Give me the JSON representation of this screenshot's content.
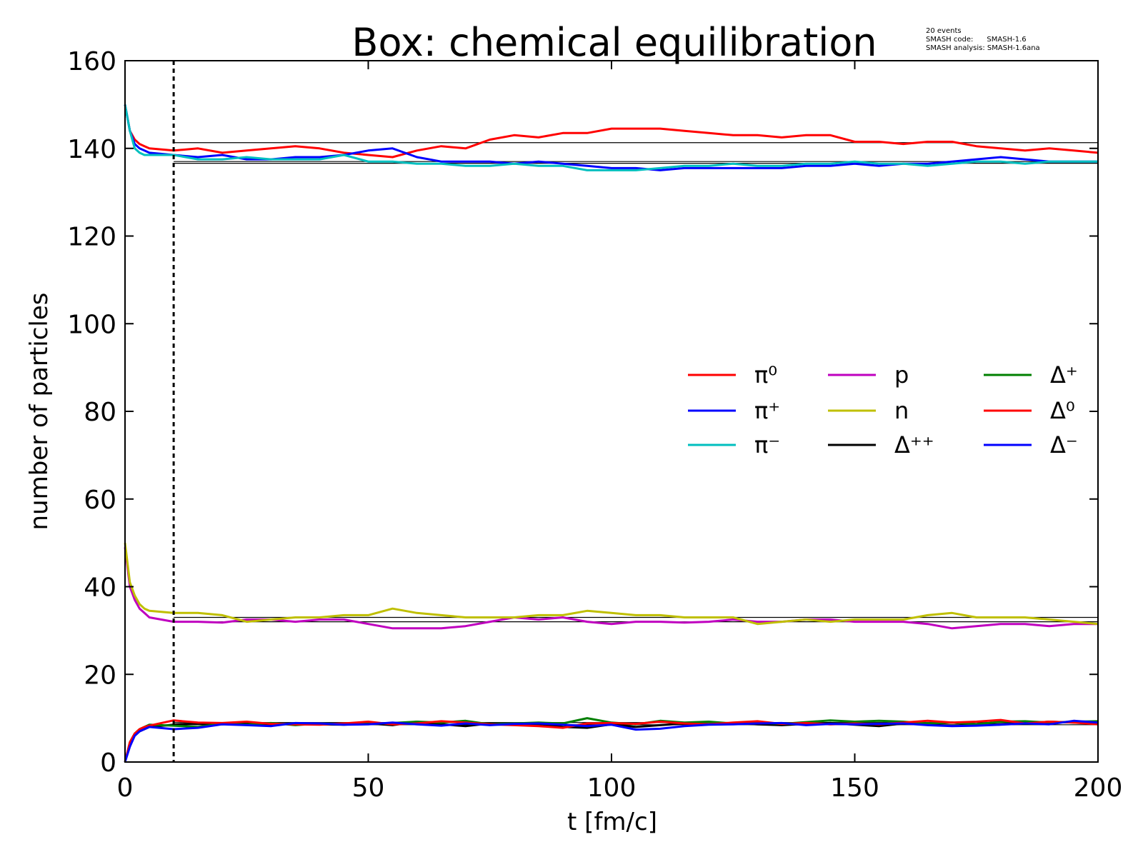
{
  "chart_data": {
    "type": "line",
    "title": "Box: chemical equilibration",
    "xlabel": "t [fm/c]",
    "ylabel": "number of particles",
    "xlim": [
      0,
      200
    ],
    "ylim": [
      0,
      160
    ],
    "xticks": [
      0,
      50,
      100,
      150,
      200
    ],
    "yticks": [
      0,
      20,
      40,
      60,
      80,
      100,
      120,
      140,
      160
    ],
    "grid": false,
    "legend_placement": "center-right",
    "annotation": [
      "20 events",
      "SMASH code:      SMASH-1.6",
      "SMASH analysis: SMASH-1.6ana"
    ],
    "vertical_marker_t": 10,
    "equilibrium_lines": {
      "t_start": 10,
      "t_end": 200,
      "values": [
        141.3,
        137.0,
        136.6,
        33.0,
        32.0,
        9.0,
        8.5
      ]
    },
    "x": [
      0,
      1,
      2,
      3,
      4,
      5,
      10,
      15,
      20,
      25,
      30,
      35,
      40,
      45,
      50,
      55,
      60,
      65,
      70,
      75,
      80,
      85,
      90,
      95,
      100,
      105,
      110,
      115,
      120,
      125,
      130,
      135,
      140,
      145,
      150,
      155,
      160,
      165,
      170,
      175,
      180,
      185,
      190,
      195,
      200
    ],
    "series": [
      {
        "name": "π⁰",
        "color": "#ff0000",
        "values": [
          150,
          144,
          142,
          141,
          140.5,
          140,
          139.5,
          140,
          139,
          139.5,
          140,
          140.5,
          140,
          139,
          138.5,
          138,
          139.5,
          140.5,
          140,
          142,
          143,
          142.5,
          143.5,
          143.5,
          144.5,
          144.5,
          144.5,
          144,
          143.5,
          143,
          143,
          142.5,
          143,
          143,
          141.5,
          141.5,
          141,
          141.5,
          141.5,
          140.5,
          140,
          139.5,
          140,
          139.5,
          139
        ]
      },
      {
        "name": "π⁺",
        "color": "#0000ff",
        "values": [
          150,
          144,
          141,
          140,
          139.5,
          139,
          138.5,
          138,
          138.5,
          137.5,
          137.5,
          138,
          138,
          138.5,
          139.5,
          140,
          138,
          137,
          137,
          137,
          136.5,
          137,
          136.5,
          136,
          135.5,
          135.5,
          135,
          135.5,
          135.5,
          135.5,
          135.5,
          135.5,
          136,
          136,
          136.5,
          136,
          136.5,
          136.5,
          137,
          137.5,
          138,
          137.5,
          137,
          137,
          137
        ]
      },
      {
        "name": "π⁻",
        "color": "#00bfbf",
        "values": [
          150,
          144,
          140,
          139,
          138.5,
          138.5,
          138.5,
          137.5,
          137.5,
          138,
          137.5,
          137.5,
          137.5,
          138.5,
          137,
          137,
          136.5,
          136.5,
          136,
          136,
          136.5,
          136,
          136,
          135,
          135,
          135,
          135.5,
          136,
          136,
          136.5,
          136,
          136,
          136.5,
          136.5,
          137,
          136.5,
          136.5,
          136,
          136.5,
          137,
          137,
          136.5,
          137,
          137,
          137
        ]
      },
      {
        "name": "p",
        "color": "#bf00bf",
        "values": [
          49,
          40,
          37,
          35,
          34,
          33,
          32,
          32,
          31.8,
          32.5,
          32.5,
          32,
          32.5,
          32.5,
          31.5,
          30.5,
          30.5,
          30.5,
          31,
          32,
          33,
          32.5,
          33,
          32,
          31.5,
          32,
          32,
          31.8,
          32,
          32.5,
          32,
          32,
          32.5,
          32.5,
          32,
          32,
          32,
          31.5,
          30.5,
          31,
          31.5,
          31.5,
          31,
          31.5,
          31.5
        ]
      },
      {
        "name": "n",
        "color": "#bfbf00",
        "values": [
          50,
          41,
          38,
          36,
          35,
          34.5,
          34,
          34,
          33.5,
          32,
          32.5,
          33,
          33,
          33.5,
          33.5,
          35,
          34,
          33.5,
          33,
          33,
          33,
          33.5,
          33.5,
          34.5,
          34,
          33.5,
          33.5,
          33,
          33,
          33,
          31.5,
          32,
          32.5,
          32,
          32.5,
          32.5,
          32.5,
          33.5,
          34,
          33,
          33,
          33,
          32.5,
          32,
          31.5
        ]
      },
      {
        "name": "Δ⁺⁺",
        "color": "#000000",
        "values": [
          0,
          4,
          6,
          7,
          7.5,
          8,
          8.5,
          8.8,
          8.6,
          9,
          8.4,
          8.8,
          8.6,
          8.5,
          8.8,
          8.4,
          9.2,
          8.6,
          8.2,
          8.8,
          8.5,
          8.7,
          8,
          7.8,
          8.6,
          8,
          8.4,
          8.8,
          8.6,
          8.9,
          8.6,
          8.4,
          8.7,
          8.9,
          8.5,
          8.2,
          8.8,
          8.6,
          9,
          8.5,
          8.6,
          8.8,
          9.2,
          9,
          9
        ]
      },
      {
        "name": "Δ⁺",
        "color": "#007f00",
        "values": [
          0,
          4.5,
          6.5,
          7.5,
          8,
          8.5,
          8.3,
          8,
          8.8,
          8.5,
          8.9,
          8.4,
          8.8,
          8.6,
          8.7,
          8.9,
          9.2,
          9,
          9.4,
          8.6,
          8.8,
          9,
          8.8,
          10,
          9,
          8.6,
          9.4,
          9,
          9.2,
          8.8,
          9,
          8.7,
          9.1,
          9.5,
          9.2,
          9.4,
          9.2,
          8.8,
          9,
          8.6,
          9.2,
          9.3,
          9,
          9.2,
          9.3
        ]
      },
      {
        "name": "Δ⁰",
        "color": "#ff0000",
        "values": [
          0,
          4.5,
          6.5,
          7.5,
          8,
          8.3,
          9.5,
          9,
          8.9,
          9.2,
          8.7,
          8.6,
          8.5,
          8.8,
          9.2,
          8.6,
          8.8,
          9.3,
          9,
          8.6,
          8.4,
          8.2,
          7.8,
          8.8,
          8.9,
          8.7,
          9.2,
          8.8,
          8.6,
          9,
          9.3,
          8.7,
          8.9,
          8.6,
          8.8,
          8.6,
          9,
          9.4,
          9,
          9.2,
          9.6,
          8.8,
          9.2,
          9,
          8.6
        ]
      },
      {
        "name": "Δ⁻",
        "color": "#0000ff",
        "values": [
          0,
          3.5,
          6,
          7,
          7.5,
          8,
          7.5,
          7.8,
          8.6,
          8.4,
          8.2,
          8.9,
          8.8,
          8.5,
          8.6,
          9,
          8.6,
          8.3,
          8.8,
          8.4,
          8.7,
          8.8,
          8.5,
          8.2,
          8.5,
          7.4,
          7.6,
          8.2,
          8.5,
          8.6,
          8.8,
          8.9,
          8.4,
          8.7,
          8.6,
          8.7,
          8.8,
          8.4,
          8.2,
          8.3,
          8.5,
          8.8,
          8.6,
          9.4,
          9
        ]
      }
    ]
  }
}
